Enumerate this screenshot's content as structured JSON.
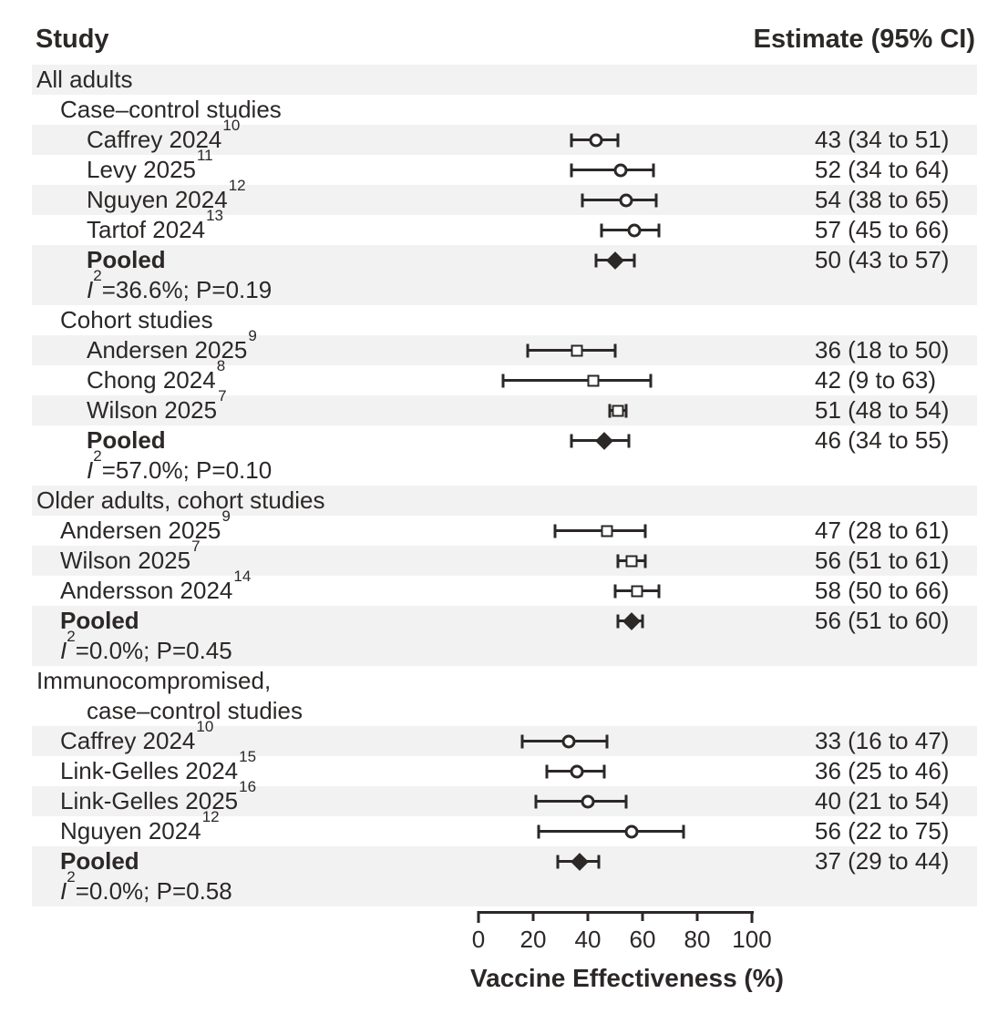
{
  "header": {
    "study_col": "Study",
    "estimate_col": "Estimate (95% CI)"
  },
  "axis": {
    "min": 0,
    "max": 100,
    "ticks": [
      0,
      20,
      40,
      60,
      80,
      100
    ],
    "title": "Vaccine Effectiveness (%)"
  },
  "colors": {
    "ink": "#2b2827",
    "stripe": "#f2f2f2",
    "background": "#ffffff"
  },
  "chart_data": {
    "type": "forest",
    "xlabel": "Vaccine Effectiveness (%)",
    "xlim": [
      0,
      100
    ],
    "xticks": [
      0,
      20,
      40,
      60,
      80,
      100
    ],
    "estimate_column_header": "Estimate (95% CI)",
    "marker_legend": {
      "circle": "case-control study estimate",
      "square": "cohort study estimate",
      "diamond": "pooled estimate"
    },
    "rows": [
      {
        "kind": "group",
        "label": "All adults",
        "indent": 0,
        "striped": true
      },
      {
        "kind": "subgroup",
        "label": "Case–control studies",
        "indent": 1,
        "striped": false
      },
      {
        "kind": "study",
        "marker": "circle",
        "label": "Caffrey 2024",
        "sup": "10",
        "indent": 2,
        "striped": true,
        "est": 43,
        "lo": 34,
        "hi": 51,
        "estimate_text": "43 (34 to 51)"
      },
      {
        "kind": "study",
        "marker": "circle",
        "label": "Levy 2025",
        "sup": "11",
        "indent": 2,
        "striped": false,
        "est": 52,
        "lo": 34,
        "hi": 64,
        "estimate_text": "52 (34 to 64)"
      },
      {
        "kind": "study",
        "marker": "circle",
        "label": "Nguyen 2024",
        "sup": "12",
        "indent": 2,
        "striped": true,
        "est": 54,
        "lo": 38,
        "hi": 65,
        "estimate_text": "54 (38 to 65)"
      },
      {
        "kind": "study",
        "marker": "circle",
        "label": "Tartof 2024",
        "sup": "13",
        "indent": 2,
        "striped": false,
        "est": 57,
        "lo": 45,
        "hi": 66,
        "estimate_text": "57 (45 to 66)"
      },
      {
        "kind": "pooled",
        "marker": "diamond",
        "label": "Pooled",
        "indent": 2,
        "striped": true,
        "est": 50,
        "lo": 43,
        "hi": 57,
        "estimate_text": "50 (43 to 57)"
      },
      {
        "kind": "het",
        "label": "I",
        "sup": "2",
        "rest": "=36.6%; P=0.19",
        "indent": 2,
        "striped": true
      },
      {
        "kind": "subgroup",
        "label": "Cohort studies",
        "indent": 1,
        "striped": false
      },
      {
        "kind": "study",
        "marker": "square",
        "label": "Andersen 2025",
        "sup": "9",
        "indent": 2,
        "striped": true,
        "est": 36,
        "lo": 18,
        "hi": 50,
        "estimate_text": "36 (18 to 50)"
      },
      {
        "kind": "study",
        "marker": "square",
        "label": "Chong 2024",
        "sup": "8",
        "indent": 2,
        "striped": false,
        "est": 42,
        "lo": 9,
        "hi": 63,
        "estimate_text": "42 (9 to 63)"
      },
      {
        "kind": "study",
        "marker": "square",
        "label": "Wilson 2025",
        "sup": "7",
        "indent": 2,
        "striped": true,
        "est": 51,
        "lo": 48,
        "hi": 54,
        "estimate_text": "51 (48 to 54)"
      },
      {
        "kind": "pooled",
        "marker": "diamond",
        "label": "Pooled",
        "indent": 2,
        "striped": false,
        "est": 46,
        "lo": 34,
        "hi": 55,
        "estimate_text": "46 (34 to 55)"
      },
      {
        "kind": "het",
        "label": "I",
        "sup": "2",
        "rest": "=57.0%; P=0.10",
        "indent": 2,
        "striped": false
      },
      {
        "kind": "group",
        "label": "Older adults, cohort studies",
        "indent": 0,
        "striped": true
      },
      {
        "kind": "study",
        "marker": "square",
        "label": "Andersen 2025",
        "sup": "9",
        "indent": 1,
        "striped": false,
        "est": 47,
        "lo": 28,
        "hi": 61,
        "estimate_text": "47 (28 to 61)"
      },
      {
        "kind": "study",
        "marker": "square",
        "label": "Wilson 2025",
        "sup": "7",
        "indent": 1,
        "striped": true,
        "est": 56,
        "lo": 51,
        "hi": 61,
        "estimate_text": "56 (51 to 61)"
      },
      {
        "kind": "study",
        "marker": "square",
        "label": "Andersson 2024",
        "sup": "14",
        "indent": 1,
        "striped": false,
        "est": 58,
        "lo": 50,
        "hi": 66,
        "estimate_text": "58 (50 to 66)"
      },
      {
        "kind": "pooled",
        "marker": "diamond",
        "label": "Pooled",
        "indent": 1,
        "striped": true,
        "est": 56,
        "lo": 51,
        "hi": 60,
        "estimate_text": "56 (51 to 60)"
      },
      {
        "kind": "het",
        "label": "I",
        "sup": "2",
        "rest": "=0.0%; P=0.45",
        "indent": 1,
        "striped": true
      },
      {
        "kind": "group",
        "label": "Immunocompromised,",
        "indent": 0,
        "striped": false
      },
      {
        "kind": "group-cont",
        "label": "case–control studies",
        "indent": 2,
        "striped": false
      },
      {
        "kind": "study",
        "marker": "circle",
        "label": "Caffrey 2024",
        "sup": "10",
        "indent": 1,
        "striped": true,
        "est": 33,
        "lo": 16,
        "hi": 47,
        "estimate_text": "33 (16 to 47)"
      },
      {
        "kind": "study",
        "marker": "circle",
        "label": "Link-Gelles 2024",
        "sup": "15",
        "indent": 1,
        "striped": false,
        "est": 36,
        "lo": 25,
        "hi": 46,
        "estimate_text": "36 (25 to 46)"
      },
      {
        "kind": "study",
        "marker": "circle",
        "label": "Link-Gelles 2025",
        "sup": "16",
        "indent": 1,
        "striped": true,
        "est": 40,
        "lo": 21,
        "hi": 54,
        "estimate_text": "40 (21 to 54)"
      },
      {
        "kind": "study",
        "marker": "circle",
        "label": "Nguyen 2024",
        "sup": "12",
        "indent": 1,
        "striped": false,
        "est": 56,
        "lo": 22,
        "hi": 75,
        "estimate_text": "56 (22 to 75)"
      },
      {
        "kind": "pooled",
        "marker": "diamond",
        "label": "Pooled",
        "indent": 1,
        "striped": true,
        "est": 37,
        "lo": 29,
        "hi": 44,
        "estimate_text": "37 (29 to 44)"
      },
      {
        "kind": "het",
        "label": "I",
        "sup": "2",
        "rest": "=0.0%; P=0.58",
        "indent": 1,
        "striped": true
      }
    ]
  }
}
